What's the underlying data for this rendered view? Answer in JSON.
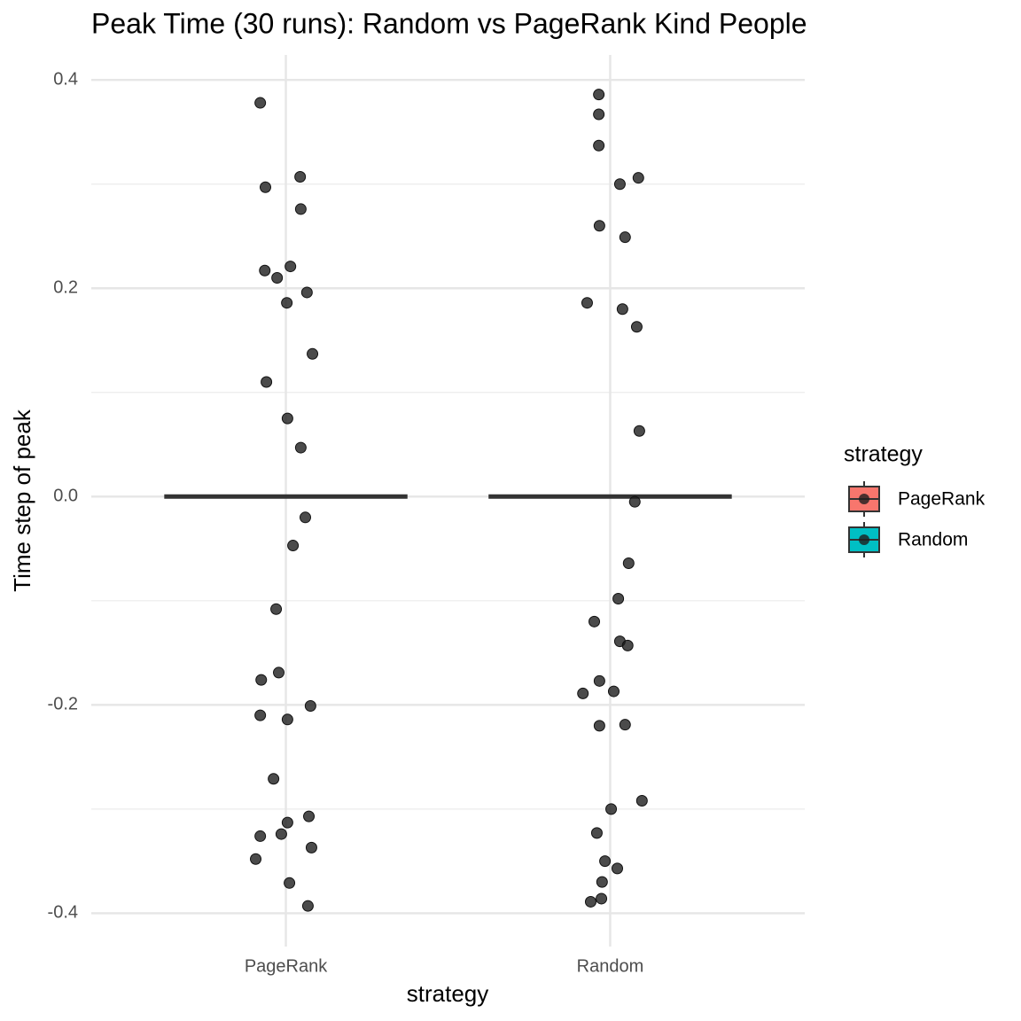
{
  "chart_data": {
    "type": "box_jitter",
    "title": "Peak Time (30 runs): Random vs PageRank Kind People",
    "x_label": "strategy",
    "y_label": "Time step of peak",
    "categories": [
      "PageRank",
      "Random"
    ],
    "xlim": [
      0.4,
      2.6
    ],
    "ylim": [
      -0.432,
      0.424
    ],
    "yticks": [
      -0.4,
      -0.2,
      {
        "value": 0,
        "label": "0.0"
      },
      0.2,
      0.4
    ],
    "minor_yticks": [
      -0.3,
      -0.1,
      0.1,
      0.3
    ],
    "grid": true,
    "legend": {
      "title": "strategy",
      "position": "right"
    },
    "series": [
      {
        "name": "PageRank",
        "color": "#F8766D",
        "q1": 0,
        "median": 0,
        "q3": 0,
        "points": {
          "x": [
            0.921,
            0.937,
            1.044,
            1.046,
            0.935,
            1.014,
            0.973,
            1.065,
            1.003,
            1.082,
            0.94,
            1.005,
            1.046,
            1.06,
            1.022,
            0.97,
            0.978,
            0.924,
            1.076,
            0.921,
            1.005,
            0.962,
            1.071,
            1.005,
            0.921,
            0.986,
            1.079,
            0.907,
            1.011,
            1.068
          ],
          "y": [
            0.378,
            0.297,
            0.307,
            0.276,
            0.217,
            0.221,
            0.21,
            0.196,
            0.186,
            0.137,
            0.11,
            0.075,
            0.047,
            -0.02,
            -0.047,
            -0.108,
            -0.169,
            -0.176,
            -0.201,
            -0.21,
            -0.214,
            -0.271,
            -0.307,
            -0.313,
            -0.326,
            -0.324,
            -0.337,
            -0.348,
            -0.371,
            -0.393
          ]
        }
      },
      {
        "name": "Random",
        "color": "#00BFC4",
        "q1": 0,
        "median": 0,
        "q3": 0,
        "points": {
          "x": [
            1.965,
            1.965,
            1.965,
            2.03,
            2.087,
            1.967,
            2.046,
            1.929,
            2.038,
            2.082,
            2.09,
            2.076,
            2.057,
            2.025,
            1.951,
            2.03,
            2.054,
            1.967,
            2.011,
            1.916,
            1.967,
            2.046,
            2.098,
            2.003,
            1.959,
            1.984,
            2.022,
            1.975,
            1.973,
            1.94
          ],
          "y": [
            0.386,
            0.367,
            0.337,
            0.3,
            0.306,
            0.26,
            0.249,
            0.186,
            0.18,
            0.163,
            0.063,
            -0.005,
            -0.064,
            -0.098,
            -0.12,
            -0.139,
            -0.143,
            -0.177,
            -0.187,
            -0.189,
            -0.22,
            -0.219,
            -0.292,
            -0.3,
            -0.323,
            -0.35,
            -0.357,
            -0.37,
            -0.386,
            -0.389
          ]
        }
      }
    ]
  }
}
